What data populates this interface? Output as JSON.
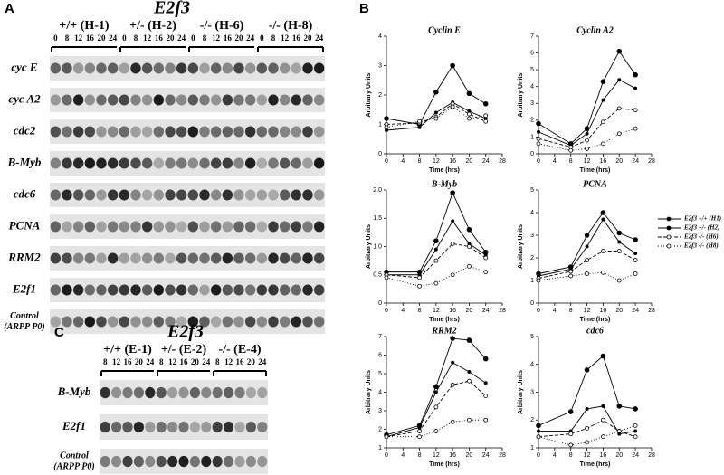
{
  "panel_a": {
    "letter": "A",
    "title": "E2f3",
    "groups": [
      "+/+ (H-1)",
      "+/- (H-2)",
      "-/- (H-6)",
      "-/- (H-8)"
    ],
    "timepoints": [
      "0",
      "8",
      "12",
      "16",
      "20",
      "24"
    ],
    "rows": [
      "cyc E",
      "cyc A2",
      "cdc2",
      "B-Myb",
      "cdc6",
      "PCNA",
      "RRM2",
      "E2f1",
      [
        "Control",
        "(ARPP P0)"
      ]
    ]
  },
  "panel_c": {
    "letter": "C",
    "title": "E2f3",
    "groups": [
      "+/+ (E-1)",
      "+/- (E-2)",
      "-/- (E-4)"
    ],
    "timepoints": [
      "8",
      "12",
      "16",
      "20",
      "24"
    ],
    "rows": [
      "B-Myb",
      "E2f1",
      [
        "Control",
        "(ARPP P0)"
      ]
    ]
  },
  "panel_b": {
    "letter": "B"
  },
  "legend": [
    {
      "name": "E2f3 +/+ (H1)",
      "dash": "none",
      "marker": "filled-large"
    },
    {
      "name": "E2f3 +/- (H2)",
      "dash": "none",
      "marker": "filled-small"
    },
    {
      "name": "E2f3 -/- (H6)",
      "dash": "4 2",
      "marker": "open"
    },
    {
      "name": "E2f3 -/- (H8)",
      "dash": "1 2",
      "marker": "open"
    }
  ],
  "chart_data": [
    {
      "type": "line",
      "title": "Cyclin E",
      "ylabel": "Arbitrary Units",
      "xlabel": "Time (hrs)",
      "x": [
        0,
        8,
        12,
        16,
        20,
        24
      ],
      "xlim": [
        0,
        28
      ],
      "xticks": [
        0,
        4,
        8,
        12,
        16,
        20,
        24,
        28
      ],
      "ylim": [
        0,
        4
      ],
      "yticks": [
        0,
        1,
        2,
        3,
        4
      ],
      "series": [
        {
          "values": [
            1.2,
            1.0,
            2.1,
            3.0,
            2.05,
            1.7
          ]
        },
        {
          "values": [
            0.8,
            0.9,
            1.4,
            1.75,
            1.45,
            1.2
          ]
        },
        {
          "values": [
            1.0,
            1.05,
            1.25,
            1.7,
            1.35,
            1.1
          ]
        },
        {
          "values": [
            0.9,
            1.1,
            1.2,
            1.6,
            1.2,
            1.3
          ]
        }
      ]
    },
    {
      "type": "line",
      "title": "Cyclin A2",
      "ylabel": "Arbitrary Units",
      "xlabel": "Time (hrs)",
      "x": [
        0,
        8,
        12,
        16,
        20,
        24
      ],
      "xlim": [
        0,
        28
      ],
      "xticks": [
        0,
        4,
        8,
        12,
        16,
        20,
        24,
        28
      ],
      "ylim": [
        0,
        7
      ],
      "yticks": [
        0,
        1,
        2,
        3,
        4,
        5,
        6,
        7
      ],
      "series": [
        {
          "values": [
            1.8,
            0.6,
            1.5,
            4.3,
            6.1,
            4.7
          ]
        },
        {
          "values": [
            1.3,
            0.5,
            1.2,
            3.2,
            4.4,
            3.9
          ]
        },
        {
          "values": [
            0.9,
            0.4,
            0.8,
            1.9,
            2.7,
            2.6
          ]
        },
        {
          "values": [
            0.6,
            0.2,
            0.3,
            0.6,
            1.2,
            1.5
          ]
        }
      ]
    },
    {
      "type": "line",
      "title": "B-Myb",
      "ylabel": "Arbitrary Units",
      "xlabel": "Time (hrs)",
      "x": [
        0,
        8,
        12,
        16,
        20,
        24
      ],
      "xlim": [
        0,
        28
      ],
      "xticks": [
        0,
        4,
        8,
        12,
        16,
        20,
        24,
        28
      ],
      "ylim": [
        0,
        2
      ],
      "yticks": [
        0,
        0.5,
        {
          "value": 1,
          "label": "1.0"
        },
        1.5,
        {
          "value": 2,
          "label": "2.0"
        }
      ],
      "series": [
        {
          "values": [
            0.55,
            0.55,
            1.1,
            1.95,
            1.3,
            0.9
          ]
        },
        {
          "values": [
            0.5,
            0.5,
            0.95,
            1.45,
            1.05,
            0.85
          ]
        },
        {
          "values": [
            0.5,
            0.45,
            0.75,
            1.05,
            1.0,
            0.8
          ]
        },
        {
          "values": [
            0.45,
            0.3,
            0.35,
            0.5,
            0.65,
            0.55
          ]
        }
      ]
    },
    {
      "type": "line",
      "title": "PCNA",
      "ylabel": "Arbitrary Units",
      "xlabel": "Time (hrs)",
      "x": [
        0,
        8,
        12,
        16,
        20,
        24
      ],
      "xlim": [
        0,
        28
      ],
      "xticks": [
        0,
        4,
        8,
        12,
        16,
        20,
        24,
        28
      ],
      "ylim": [
        0,
        5
      ],
      "yticks": [
        0,
        1,
        2,
        3,
        4,
        5
      ],
      "series": [
        {
          "values": [
            1.3,
            1.6,
            3.0,
            4.0,
            3.1,
            2.8
          ]
        },
        {
          "values": [
            1.2,
            1.5,
            2.5,
            3.7,
            2.7,
            2.2
          ]
        },
        {
          "values": [
            1.1,
            1.4,
            1.9,
            2.3,
            2.3,
            1.9
          ]
        },
        {
          "values": [
            1.0,
            1.2,
            1.3,
            1.35,
            1.0,
            1.3
          ]
        }
      ]
    },
    {
      "type": "line",
      "title": "RRM2",
      "ylabel": "Arbitrary Units",
      "xlabel": "Time (hrs)",
      "x": [
        0,
        8,
        12,
        16,
        20,
        24
      ],
      "xlim": [
        0,
        28
      ],
      "xticks": [
        0,
        4,
        8,
        12,
        16,
        20,
        24,
        28
      ],
      "ylim": [
        1,
        7
      ],
      "yticks": [
        1,
        2,
        3,
        4,
        5,
        6,
        7
      ],
      "series": [
        {
          "values": [
            1.7,
            2.2,
            4.3,
            6.9,
            6.8,
            5.8
          ]
        },
        {
          "values": [
            1.6,
            2.1,
            4.0,
            5.6,
            5.1,
            4.5
          ]
        },
        {
          "values": [
            1.6,
            1.9,
            3.2,
            4.4,
            4.6,
            3.8
          ]
        },
        {
          "values": [
            1.6,
            1.6,
            1.9,
            2.4,
            2.5,
            2.5
          ]
        }
      ]
    },
    {
      "type": "line",
      "title": "cdc6",
      "ylabel": "Arbitrary Units",
      "xlabel": "Time (hrs)",
      "x": [
        0,
        8,
        12,
        16,
        20,
        24
      ],
      "xlim": [
        0,
        28
      ],
      "xticks": [
        0,
        4,
        8,
        12,
        16,
        20,
        24,
        28
      ],
      "ylim": [
        1,
        5
      ],
      "yticks": [
        1,
        2,
        3,
        4,
        5
      ],
      "series": [
        {
          "values": [
            1.8,
            2.3,
            3.8,
            4.3,
            2.5,
            2.4
          ]
        },
        {
          "values": [
            1.6,
            1.6,
            2.4,
            2.5,
            1.5,
            1.6
          ]
        },
        {
          "values": [
            1.4,
            1.5,
            1.7,
            2.0,
            1.6,
            1.4
          ]
        },
        {
          "values": [
            1.4,
            1.1,
            1.2,
            1.4,
            1.6,
            1.8
          ]
        }
      ]
    }
  ]
}
